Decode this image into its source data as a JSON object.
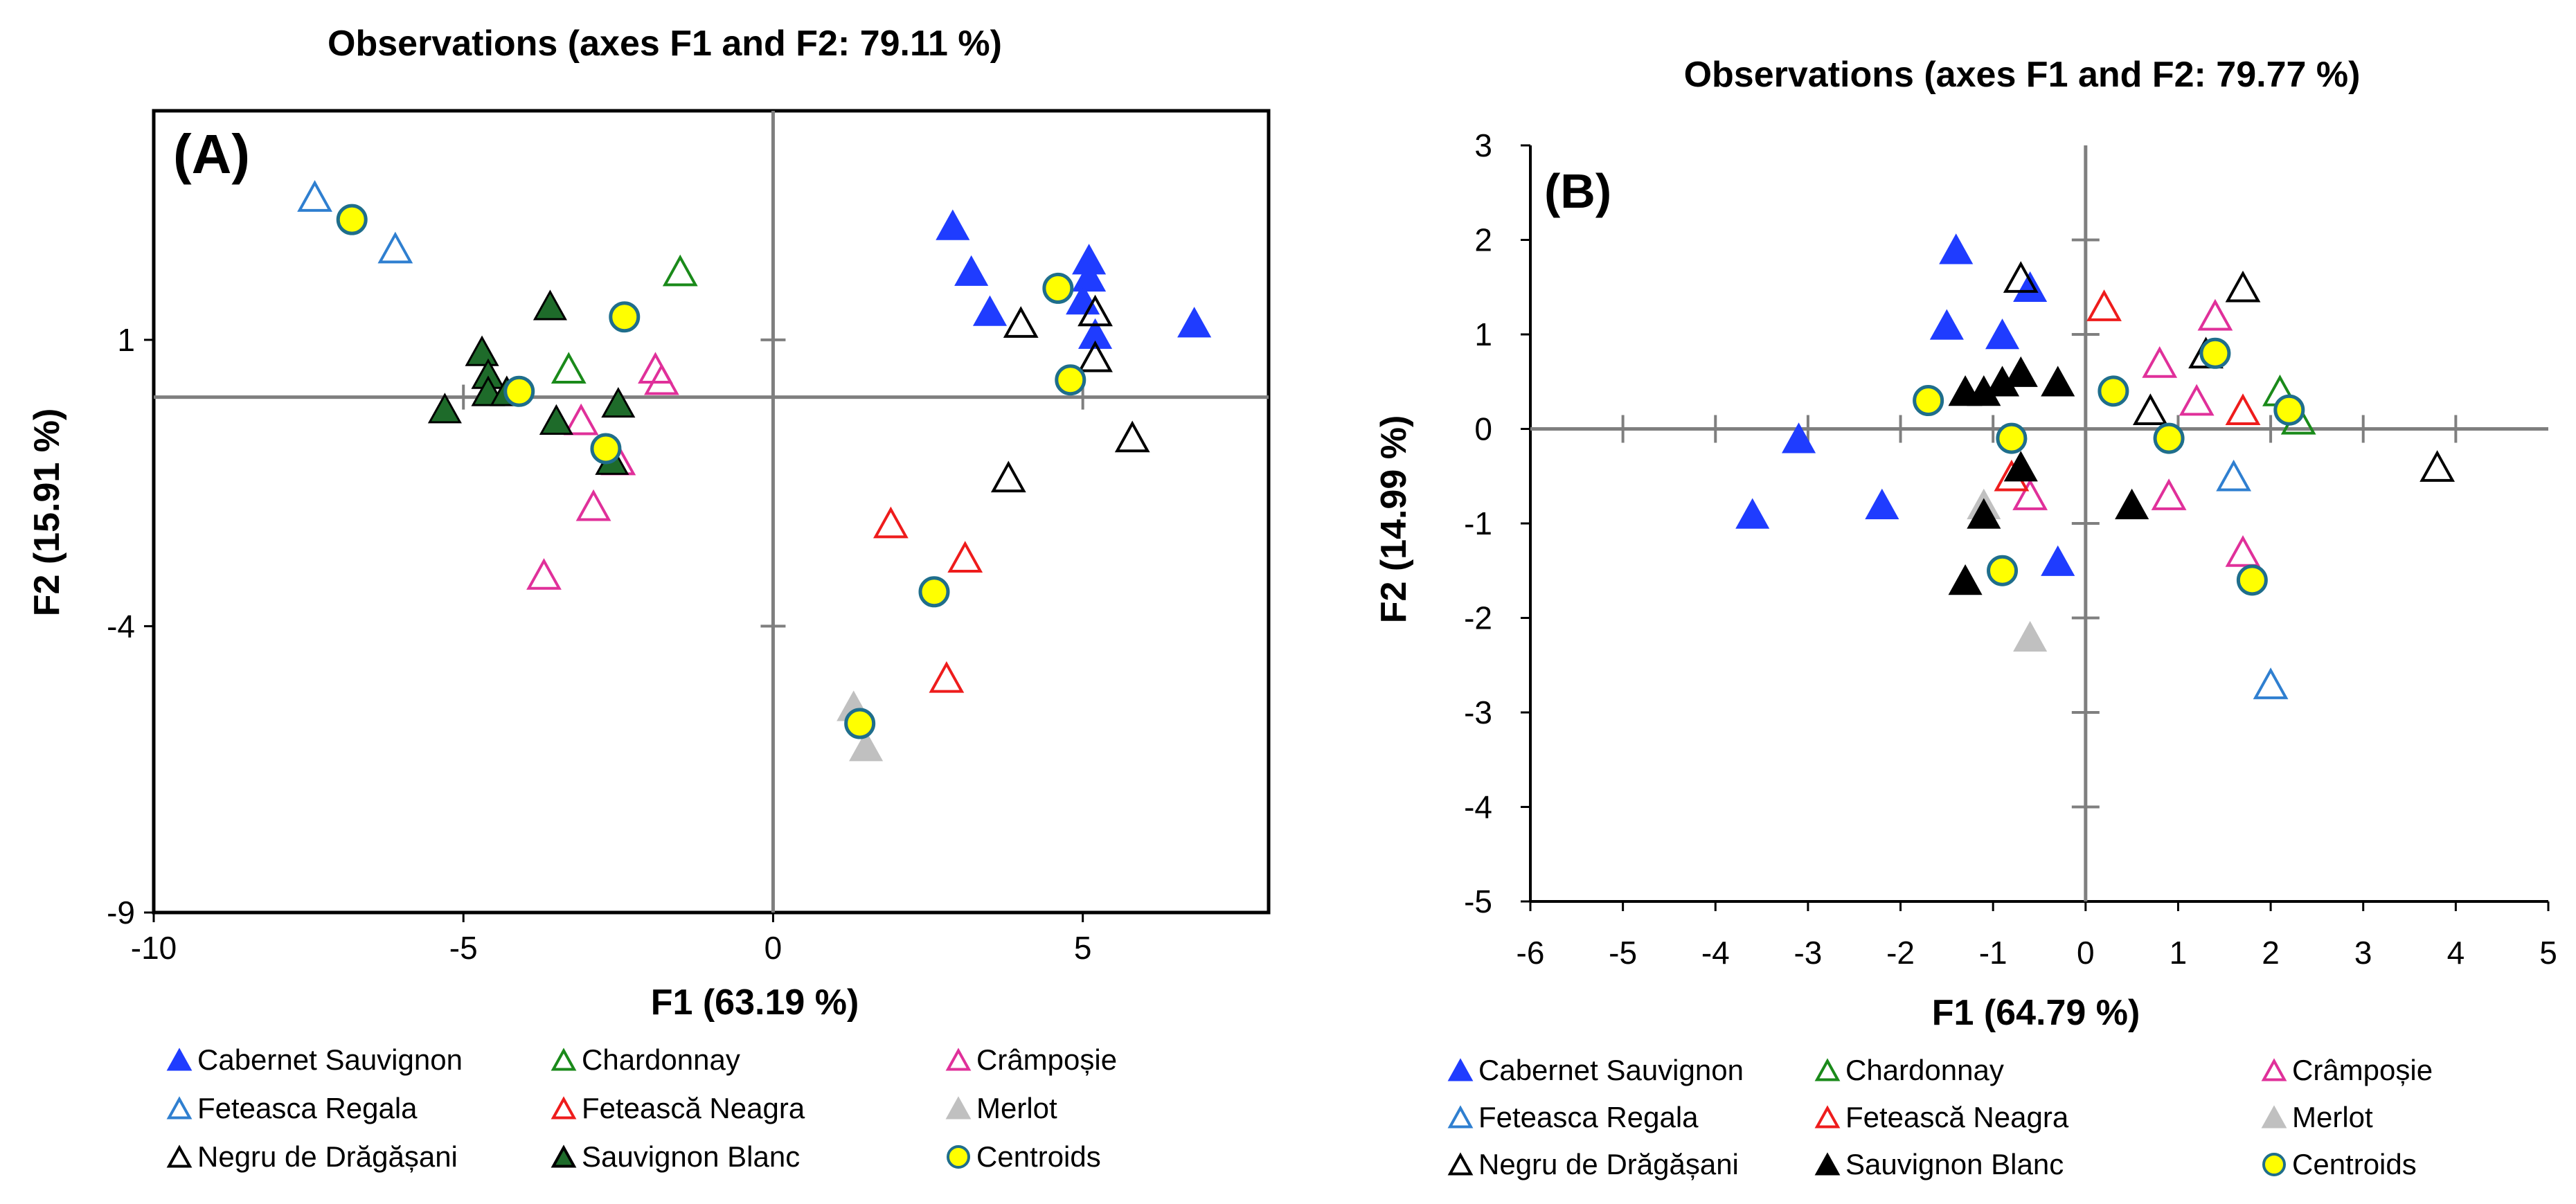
{
  "colors": {
    "cabernet": "#1f3cff",
    "chardonnay": "#1a8a1a",
    "crampoise": "#e0309a",
    "feteasca_regala": "#2f7fd0",
    "feteasca_neagra": "#ee1c1c",
    "merlot": "#c0c0c0",
    "negru": "#000000",
    "sauvignon": "#000000",
    "sauvignon_a_fill": "#1e6b2a",
    "centroid_fill": "#ffff00",
    "centroid_stroke": "#1f6e8c",
    "axis": "#7f7f7f"
  },
  "legend": {
    "cabernet": "Cabernet Sauvignon",
    "chardonnay": "Chardonnay",
    "crampoise": "Crâmpoșie",
    "feteasca_regala": "Feteasca Regala",
    "feteasca_neagra": "Fetească Neagra",
    "merlot": "Merlot",
    "negru": "Negru de Drăgășani",
    "sauvignon": "Sauvignon Blanc",
    "centroids": "Centroids"
  },
  "chart_data": [
    {
      "type": "scatter",
      "panel_label": "(A)",
      "title": "Observations (axes F1 and F2: 79.11 %)",
      "xlabel": "F1 (63.19 %)",
      "ylabel": "F2 (15.91 %)",
      "xlim": [
        -10,
        8
      ],
      "ylim": [
        -9,
        5
      ],
      "xticks": [
        -10,
        -5,
        0,
        5
      ],
      "yticks": [
        1,
        -4,
        -9
      ],
      "tick_labels_x": [
        "-10",
        "-5",
        "0",
        "5"
      ],
      "tick_labels_y": [
        "1",
        "-4",
        "-9"
      ],
      "series": [
        {
          "key": "cabernet",
          "name": "Cabernet Sauvignon",
          "marker": "triangle-filled",
          "x": [
            2.9,
            3.2,
            3.5,
            5.1,
            5.1,
            5.0,
            5.2,
            6.8
          ],
          "y": [
            3.0,
            2.2,
            1.5,
            2.4,
            2.1,
            1.7,
            1.1,
            1.3
          ]
        },
        {
          "key": "chardonnay",
          "name": "Chardonnay",
          "marker": "triangle-open",
          "x": [
            -1.5,
            -3.3
          ],
          "y": [
            2.2,
            0.5
          ]
        },
        {
          "key": "crampoise",
          "name": "Crâmpoșie",
          "marker": "triangle-open",
          "x": [
            -1.9,
            -1.8,
            -3.1,
            -2.5,
            -2.9,
            -3.7
          ],
          "y": [
            0.5,
            0.3,
            -0.4,
            -1.1,
            -1.9,
            -3.1
          ]
        },
        {
          "key": "feteasca_regala",
          "name": "Feteasca Regala",
          "marker": "triangle-open",
          "x": [
            -7.4,
            -6.1
          ],
          "y": [
            3.5,
            2.6
          ]
        },
        {
          "key": "feteasca_neagra",
          "name": "Fetească Neagra",
          "marker": "triangle-open",
          "x": [
            1.9,
            3.1,
            2.8
          ],
          "y": [
            -2.2,
            -2.8,
            -4.9
          ]
        },
        {
          "key": "merlot",
          "name": "Merlot",
          "marker": "triangle-filled",
          "x": [
            1.3,
            1.5
          ],
          "y": [
            -5.4,
            -6.1
          ]
        },
        {
          "key": "negru",
          "name": "Negru de Drăgășani",
          "marker": "triangle-open",
          "x": [
            4.0,
            5.2,
            5.2,
            3.8,
            5.8
          ],
          "y": [
            1.3,
            1.5,
            0.7,
            -1.4,
            -0.7
          ]
        },
        {
          "key": "sauvignon",
          "name": "Sauvignon Blanc",
          "marker": "triangle-filled",
          "x": [
            -4.7,
            -4.6,
            -4.6,
            -3.6,
            -4.3,
            -2.5,
            -5.3,
            -3.5,
            -2.6
          ],
          "y": [
            0.8,
            0.4,
            0.1,
            1.6,
            0.1,
            -0.1,
            -0.2,
            -0.4,
            -1.1
          ]
        },
        {
          "key": "centroids",
          "name": "Centroids",
          "marker": "circle",
          "x": [
            -6.8,
            -2.4,
            -4.1,
            -2.7,
            4.6,
            4.8,
            2.6,
            1.4
          ],
          "y": [
            3.1,
            1.4,
            0.1,
            -0.9,
            1.9,
            0.3,
            -3.4,
            -5.7
          ]
        }
      ]
    },
    {
      "type": "scatter",
      "panel_label": "(B)",
      "title": "Observations (axes F1 and F2: 79.77 %)",
      "xlabel": "F1 (64.79 %)",
      "ylabel": "F2 (14.99 %)",
      "xlim": [
        -6,
        5
      ],
      "ylim": [
        -5,
        3
      ],
      "xticks": [
        -6,
        -5,
        -4,
        -3,
        -2,
        -1,
        0,
        1,
        2,
        3,
        4,
        5
      ],
      "yticks": [
        3,
        2,
        1,
        0,
        -1,
        -2,
        -3,
        -4,
        -5
      ],
      "tick_labels_x": [
        "-6",
        "-5",
        "-4",
        "-3",
        "-2",
        "-1",
        "0",
        "1",
        "2",
        "3",
        "4",
        "5"
      ],
      "tick_labels_y": [
        "3",
        "2",
        "1",
        "0",
        "-1",
        "-2",
        "-3",
        "-4",
        "-5"
      ],
      "series": [
        {
          "key": "cabernet",
          "name": "Cabernet Sauvignon",
          "marker": "triangle-filled",
          "x": [
            -1.4,
            -1.5,
            -0.9,
            -0.6,
            -3.1,
            -3.6,
            -2.2,
            -0.3
          ],
          "y": [
            1.9,
            1.1,
            1.0,
            1.5,
            -0.1,
            -0.9,
            -0.8,
            -1.4
          ]
        },
        {
          "key": "chardonnay",
          "name": "Chardonnay",
          "marker": "triangle-open",
          "x": [
            2.1,
            2.3
          ],
          "y": [
            0.4,
            0.1
          ]
        },
        {
          "key": "crampoise",
          "name": "Crâmpoșie",
          "marker": "triangle-open",
          "x": [
            1.4,
            0.8,
            1.2,
            0.9,
            1.7,
            -0.6
          ],
          "y": [
            1.2,
            0.7,
            0.3,
            -0.7,
            -1.3,
            -0.7
          ]
        },
        {
          "key": "feteasca_regala",
          "name": "Feteasca Regala",
          "marker": "triangle-open",
          "x": [
            1.6,
            2.0
          ],
          "y": [
            -0.5,
            -2.7
          ]
        },
        {
          "key": "feteasca_neagra",
          "name": "Fetească Neagra",
          "marker": "triangle-open",
          "x": [
            0.2,
            1.7,
            -0.8
          ],
          "y": [
            1.3,
            0.2,
            -0.5
          ]
        },
        {
          "key": "merlot",
          "name": "Merlot",
          "marker": "triangle-filled",
          "x": [
            -0.6,
            -1.1
          ],
          "y": [
            -2.2,
            -0.8
          ]
        },
        {
          "key": "negru",
          "name": "Negru de Drăgășani",
          "marker": "triangle-open",
          "x": [
            -0.7,
            1.7,
            0.7,
            3.8,
            1.3
          ],
          "y": [
            1.6,
            1.5,
            0.2,
            -0.4,
            0.8
          ]
        },
        {
          "key": "sauvignon",
          "name": "Sauvignon Blanc",
          "marker": "triangle-filled",
          "x": [
            -1.1,
            -0.9,
            -0.7,
            -0.3,
            -1.3,
            -0.7,
            -1.1,
            0.5,
            -1.3
          ],
          "y": [
            0.4,
            0.5,
            0.6,
            0.5,
            0.4,
            -0.4,
            -0.9,
            -0.8,
            -1.6
          ]
        },
        {
          "key": "centroids",
          "name": "Centroids",
          "marker": "circle",
          "x": [
            -1.7,
            0.3,
            1.4,
            2.2,
            -0.8,
            0.9,
            -0.9,
            1.8
          ],
          "y": [
            0.3,
            0.4,
            0.8,
            0.2,
            -0.1,
            -0.1,
            -1.5,
            -1.6
          ]
        }
      ]
    }
  ]
}
